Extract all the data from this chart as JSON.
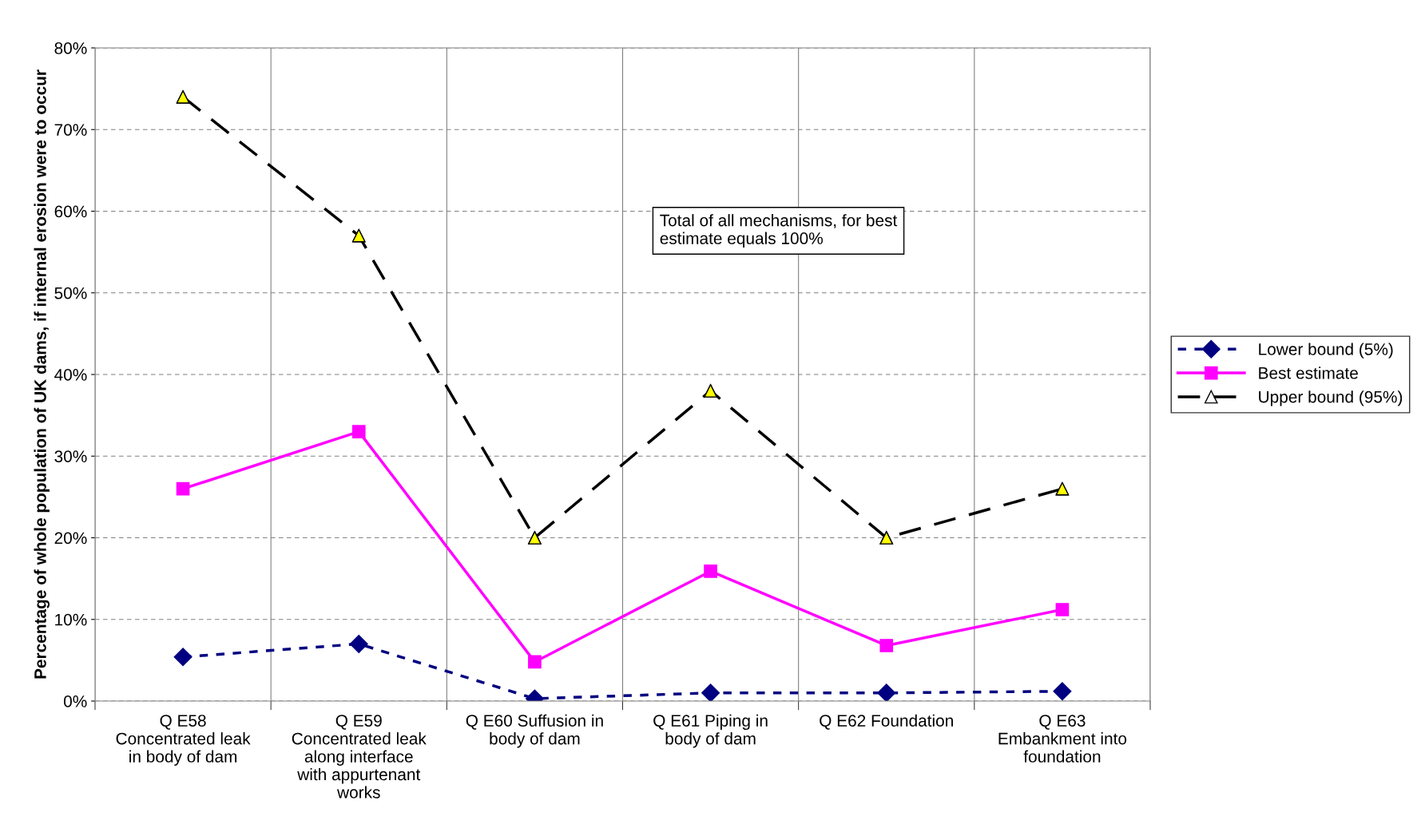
{
  "chart_data": {
    "type": "line",
    "ylabel": "Percentage of whole population of UK dams, if internal erosion were to occur",
    "categories": [
      "Q E58\nConcentrated leak\nin body of dam",
      "Q E59\nConcentrated leak\nalong interface\nwith appurtenant\nworks",
      "Q E60 Suffusion in\nbody of dam",
      "Q E61 Piping in\nbody of dam",
      "Q E62 Foundation",
      "Q E63\nEmbankment into\nfoundation"
    ],
    "series": [
      {
        "name": "Lower bound (5%)",
        "color": "#000080",
        "marker": "diamond",
        "line_style": "dotted",
        "values": [
          5.4,
          7.0,
          0.3,
          1.0,
          1.0,
          1.2
        ]
      },
      {
        "name": "Best estimate",
        "color": "#ff00ff",
        "marker": "square",
        "line_style": "solid",
        "values": [
          26.0,
          33.0,
          4.8,
          15.9,
          6.8,
          11.2
        ]
      },
      {
        "name": "Upper bound (95%)",
        "color": "#000000",
        "marker": "triangle",
        "line_style": "dashed",
        "colors": [
          "#ffff00",
          "#ffff00",
          "#ffff00",
          "#ffff00",
          "#ffff00",
          "#ffff00"
        ],
        "values": [
          74,
          57,
          20,
          38,
          20,
          26
        ]
      }
    ],
    "ylim": [
      0,
      80
    ],
    "yticks": [
      {
        "value": 0,
        "label": "0%"
      },
      {
        "value": 10,
        "label": "10%"
      },
      {
        "value": 20,
        "label": "20%"
      },
      {
        "value": 30,
        "label": "30%"
      },
      {
        "value": 40,
        "label": "40%"
      },
      {
        "value": 50,
        "label": "50%"
      },
      {
        "value": 60,
        "label": "60%"
      },
      {
        "value": 70,
        "label": "70%"
      },
      {
        "value": 80,
        "label": "80%"
      }
    ],
    "grid": true,
    "legend": "right",
    "annotations": [
      "Total of all mechanisms, for best\nestimate equals 100%"
    ]
  }
}
